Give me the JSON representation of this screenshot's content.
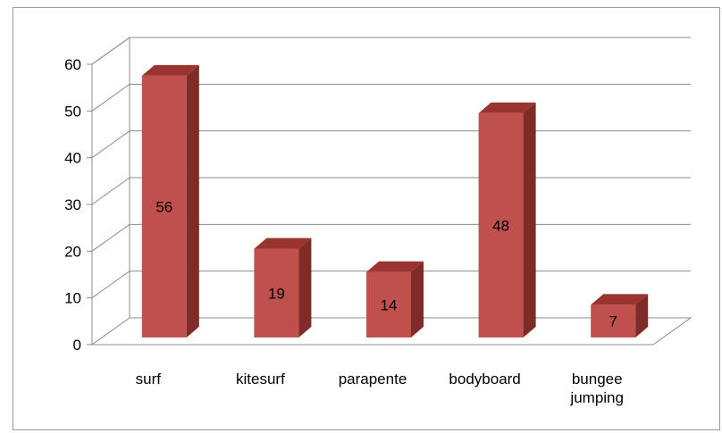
{
  "chart_data": {
    "type": "bar",
    "style": "3d-column",
    "categories": [
      "surf",
      "kitesurf",
      "parapente",
      "bodyboard",
      "bungee jumping"
    ],
    "values": [
      56,
      19,
      14,
      48,
      7
    ],
    "data_labels": [
      "56",
      "19",
      "14",
      "48",
      "7"
    ],
    "yticks": [
      "0",
      "10",
      "20",
      "30",
      "40",
      "50",
      "60"
    ],
    "ylim": [
      0,
      60
    ],
    "title": "",
    "xlabel": "",
    "ylabel": "",
    "grid": true,
    "legend": "none",
    "colors": {
      "bar_front": "#c0504d",
      "bar_side": "#7f2b28",
      "bar_top": "#9b3431",
      "grid": "#8c8c8c",
      "floor": "#ffffff"
    }
  }
}
